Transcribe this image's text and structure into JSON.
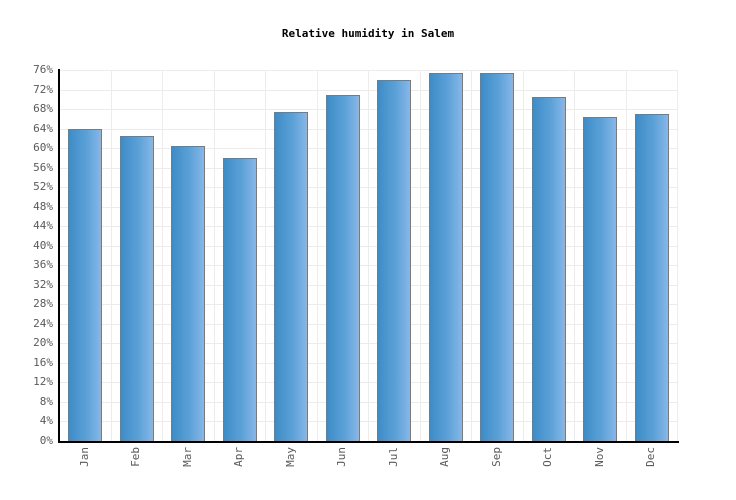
{
  "chart_data": {
    "type": "bar",
    "title": "Relative humidity in Salem",
    "categories": [
      "Jan",
      "Feb",
      "Mar",
      "Apr",
      "May",
      "Jun",
      "Jul",
      "Aug",
      "Sep",
      "Oct",
      "Nov",
      "Dec"
    ],
    "values": [
      64,
      62.5,
      60.5,
      58,
      67.5,
      71,
      74,
      75.5,
      75.5,
      70.5,
      66.5,
      67
    ],
    "unit": "%",
    "xlabel": "",
    "ylabel": "",
    "ylim": [
      0,
      76
    ],
    "ytick_step": 4,
    "ytick_labels": [
      "0%",
      "4%",
      "8%",
      "12%",
      "16%",
      "20%",
      "24%",
      "28%",
      "32%",
      "36%",
      "40%",
      "44%",
      "48%",
      "52%",
      "56%",
      "60%",
      "64%",
      "68%",
      "72%",
      "76%"
    ],
    "grid": true,
    "legend": false,
    "colors": {
      "bar_gradient_left": "#3e8cc6",
      "bar_gradient_right": "#86b7e9",
      "bar_border": "#7a7a7a",
      "grid_line": "#ececec",
      "axis_line": "#000000",
      "tick_label": "#5a5a5a",
      "title": "#000000",
      "background": "#ffffff"
    }
  }
}
